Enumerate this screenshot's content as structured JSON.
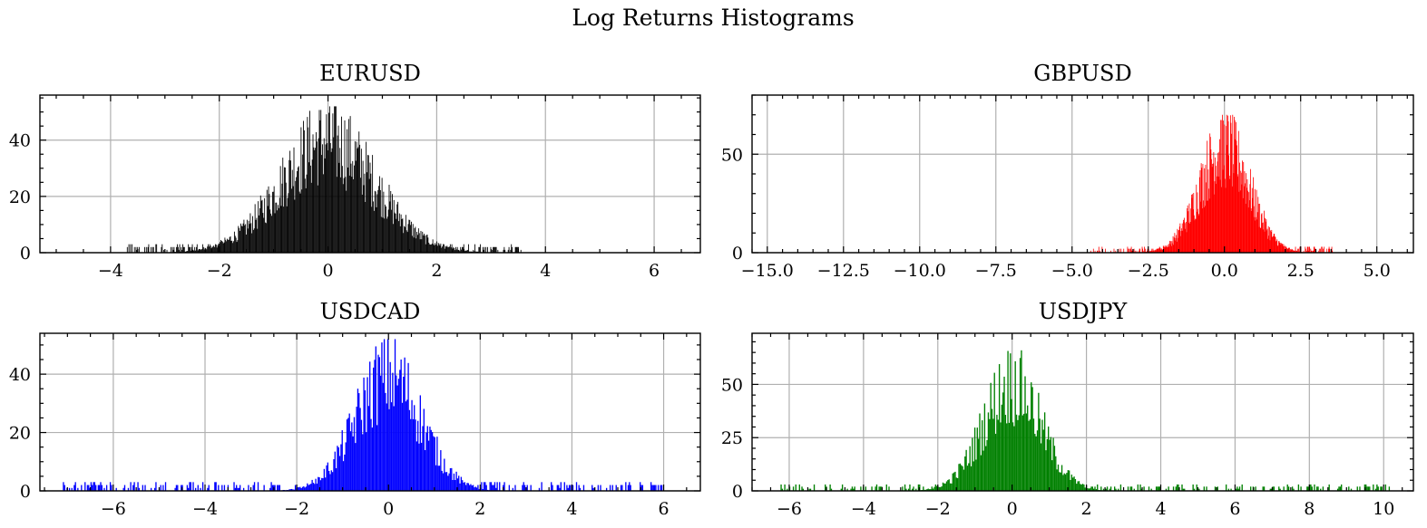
{
  "figure": {
    "title": "Log Returns Histograms"
  },
  "chart_data": [
    {
      "type": "bar",
      "title": "EURUSD",
      "color": "#000000",
      "xlim": [
        -5.3,
        6.85
      ],
      "ylim": [
        0,
        56
      ],
      "xticks": [
        -4,
        -2,
        0,
        2,
        4,
        6
      ],
      "yticks": [
        0,
        20,
        40
      ],
      "x_minor_step": 0.5,
      "y_minor_step": 5,
      "grid": true,
      "distribution": {
        "center": 0.0,
        "peak": 52,
        "spread": 0.88,
        "range": [
          -3.7,
          3.6
        ],
        "bins": 500
      }
    },
    {
      "type": "bar",
      "title": "GBPUSD",
      "color": "#ff0000",
      "xlim": [
        -15.5,
        6.2
      ],
      "ylim": [
        0,
        80
      ],
      "xticks": [
        -15.0,
        -12.5,
        -10.0,
        -7.5,
        -5.0,
        -2.5,
        0.0,
        2.5,
        5.0
      ],
      "yticks": [
        0,
        50
      ],
      "x_minor_step": 0.5,
      "y_minor_step": 10,
      "grid": true,
      "distribution": {
        "center": 0.0,
        "peak": 70,
        "spread": 0.82,
        "range": [
          -4.4,
          3.6
        ],
        "bins": 450
      }
    },
    {
      "type": "bar",
      "title": "USDCAD",
      "color": "#0000ff",
      "xlim": [
        -7.6,
        6.8
      ],
      "ylim": [
        0,
        54
      ],
      "xticks": [
        -6,
        -4,
        -2,
        0,
        2,
        4,
        6
      ],
      "yticks": [
        0,
        20,
        40
      ],
      "x_minor_step": 0.5,
      "y_minor_step": 5,
      "grid": true,
      "distribution": {
        "center": 0.0,
        "peak": 52,
        "spread": 0.72,
        "range": [
          -7.1,
          6.0
        ],
        "bins": 500
      }
    },
    {
      "type": "bar",
      "title": "USDJPY",
      "color": "#008000",
      "xlim": [
        -7.0,
        10.8
      ],
      "ylim": [
        0,
        74
      ],
      "xticks": [
        -6,
        -4,
        -2,
        0,
        2,
        4,
        6,
        8,
        10
      ],
      "yticks": [
        0,
        25,
        50
      ],
      "x_minor_step": 0.5,
      "y_minor_step": 5,
      "grid": true,
      "distribution": {
        "center": 0.0,
        "peak": 66,
        "spread": 0.78,
        "range": [
          -6.3,
          10.2
        ],
        "bins": 500
      }
    }
  ]
}
